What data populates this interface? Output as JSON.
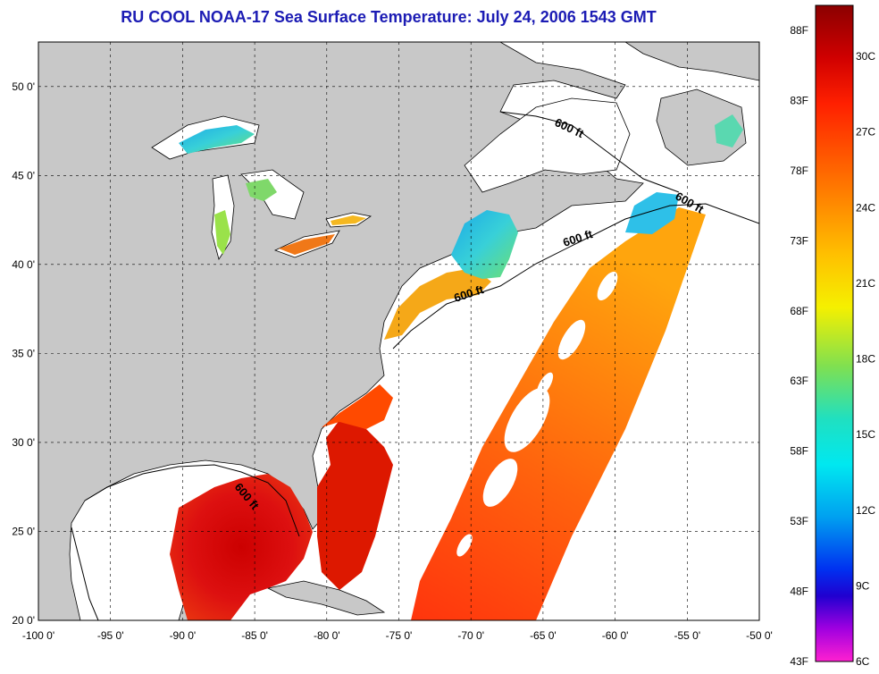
{
  "title": "RU COOL  NOAA-17  Sea Surface Temperature:  July 24, 2006 1543 GMT",
  "map": {
    "lon_range": [
      -100,
      -50
    ],
    "lat_range": [
      20,
      52.5
    ],
    "x_ticks": [
      "-100 0'",
      "-95 0'",
      "-90 0'",
      "-85 0'",
      "-80 0'",
      "-75 0'",
      "-70 0'",
      "-65 0'",
      "-60 0'",
      "-55 0'",
      "-50 0'"
    ],
    "y_ticks": [
      "50 0'",
      "45 0'",
      "40 0'",
      "35 0'",
      "30 0'",
      "25 0'",
      "20 0'"
    ],
    "grid": "dashed",
    "land_color": "#c8c8c8",
    "no_data_color": "#ffffff",
    "contour_labels": [
      "600 ft",
      "600 ft",
      "600 ft",
      "600 ft",
      "600 ft"
    ]
  },
  "colorbar": {
    "celsius_labels": [
      "30C",
      "27C",
      "24C",
      "21C",
      "18C",
      "15C",
      "12C",
      "9C",
      "6C"
    ],
    "fahrenheit_labels": [
      "88F",
      "83F",
      "78F",
      "73F",
      "68F",
      "63F",
      "58F",
      "53F",
      "48F",
      "43F"
    ],
    "range_c": [
      6,
      32
    ]
  }
}
